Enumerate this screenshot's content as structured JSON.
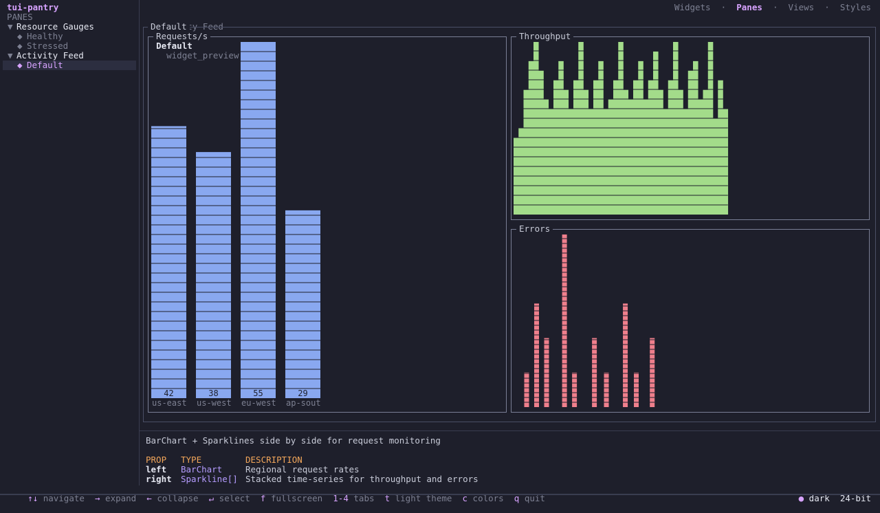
{
  "app": {
    "title": "tui-pantry"
  },
  "sidebar": {
    "section_label": "PANES",
    "groups": [
      {
        "label": "Resource Gauges",
        "marker": "▼",
        "items": [
          {
            "label": "Healthy",
            "marker": "◆"
          },
          {
            "label": "Stressed",
            "marker": "◆"
          }
        ]
      },
      {
        "label": "Activity Feed",
        "marker": "▼",
        "items": [
          {
            "label": "Default",
            "marker": "◆",
            "selected": true
          }
        ]
      }
    ]
  },
  "topnav": {
    "tabs": [
      {
        "label": "Widgets",
        "active": false
      },
      {
        "label": "Panes",
        "active": true
      },
      {
        "label": "Views",
        "active": false
      },
      {
        "label": "Styles",
        "active": false
      }
    ],
    "separator": "·"
  },
  "breadcrumb": {
    "parent": "Activity Feed",
    "separator": "›",
    "current": "Default",
    "path": "widget_preview::panes"
  },
  "preview": {
    "frame_title": "Default",
    "barchart": {
      "title": "Requests/s"
    },
    "throughput": {
      "title": "Throughput"
    },
    "errors": {
      "title": "Errors"
    }
  },
  "chart_data": [
    {
      "type": "bar",
      "title": "Requests/s",
      "categories": [
        "us-east",
        "us-west",
        "eu-west",
        "ap-sout"
      ],
      "values": [
        42,
        38,
        55,
        29
      ],
      "color": "#89a8f0"
    },
    {
      "type": "bar",
      "title": "Throughput",
      "values": [
        8,
        9,
        13,
        16,
        18,
        15,
        12,
        11,
        14,
        16,
        13,
        11,
        14,
        18,
        13,
        11,
        14,
        16,
        11,
        12,
        14,
        18,
        13,
        12,
        14,
        16,
        12,
        14,
        17,
        13,
        11,
        14,
        18,
        13,
        11,
        15,
        16,
        12,
        13,
        18,
        10,
        14,
        11
      ],
      "max": 18,
      "color": "#a3dc8a"
    },
    {
      "type": "bar",
      "title": "Errors",
      "values": [
        0,
        2,
        0,
        3,
        0,
        5,
        0,
        2,
        0,
        0,
        0,
        0,
        0,
        0,
        0,
        0
      ],
      "bars": [
        {
          "pos": 1,
          "value": 1
        },
        {
          "pos": 2,
          "value": 3
        },
        {
          "pos": 3,
          "value": 2
        },
        {
          "pos": 4.8,
          "value": 5
        },
        {
          "pos": 5.8,
          "value": 1
        },
        {
          "pos": 7.8,
          "value": 2
        },
        {
          "pos": 9,
          "value": 1
        },
        {
          "pos": 10.9,
          "value": 3
        },
        {
          "pos": 12,
          "value": 1
        },
        {
          "pos": 13.6,
          "value": 2
        }
      ],
      "max": 5,
      "color": "#ef7f8c"
    }
  ],
  "description": {
    "summary": "BarChart + Sparklines side by side for request monitoring",
    "headers": {
      "prop": "PROP",
      "type": "TYPE",
      "description": "DESCRIPTION"
    },
    "rows": [
      {
        "prop": "left",
        "type": "BarChart",
        "description": "Regional request rates"
      },
      {
        "prop": "right",
        "type": "Sparkline[]",
        "description": "Stacked time-series for throughput and errors"
      }
    ]
  },
  "footer": {
    "hints": [
      {
        "key": "↑↓",
        "label": "navigate"
      },
      {
        "key": "→",
        "label": "expand"
      },
      {
        "key": "←",
        "label": "collapse"
      },
      {
        "key": "↵",
        "label": "select"
      },
      {
        "key": "f",
        "label": "fullscreen"
      },
      {
        "key": "1-4",
        "label": "tabs"
      },
      {
        "key": "t",
        "label": "light theme"
      },
      {
        "key": "c",
        "label": "colors"
      },
      {
        "key": "q",
        "label": "quit"
      }
    ],
    "theme_indicator": "●",
    "theme": "dark",
    "color_depth": "24-bit"
  }
}
